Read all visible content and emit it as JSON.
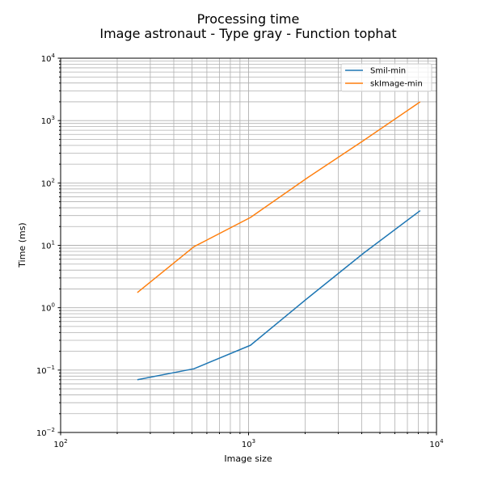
{
  "chart_data": {
    "type": "line",
    "title": "Processing time",
    "subtitle": "Image astronaut - Type gray - Function tophat",
    "xlabel": "Image size",
    "ylabel": "Time (ms)",
    "xscale": "log",
    "yscale": "log",
    "xlim": [
      100,
      10000
    ],
    "ylim": [
      0.01,
      10000
    ],
    "x_ticks": [
      {
        "value": 100,
        "base": "10",
        "exp": "2"
      },
      {
        "value": 1000,
        "base": "10",
        "exp": "3"
      },
      {
        "value": 10000,
        "base": "10",
        "exp": "4"
      }
    ],
    "y_ticks": [
      {
        "value": 0.01,
        "base": "10",
        "exp": "−2"
      },
      {
        "value": 0.1,
        "base": "10",
        "exp": "−1"
      },
      {
        "value": 1,
        "base": "10",
        "exp": "0"
      },
      {
        "value": 10,
        "base": "10",
        "exp": "1"
      },
      {
        "value": 100,
        "base": "10",
        "exp": "2"
      },
      {
        "value": 1000,
        "base": "10",
        "exp": "3"
      },
      {
        "value": 10000,
        "base": "10",
        "exp": "4"
      }
    ],
    "grid": "major and minor",
    "legend_position": "top-right",
    "series": [
      {
        "name": "Smil-min",
        "color": "#1f77b4",
        "x": [
          256,
          512,
          1024,
          2048,
          4096,
          8192
        ],
        "y": [
          0.07,
          0.105,
          0.25,
          1.4,
          7.5,
          36
        ]
      },
      {
        "name": "skImage-min",
        "color": "#ff7f0e",
        "x": [
          256,
          512,
          1024,
          2048,
          4096,
          8192
        ],
        "y": [
          1.75,
          9.5,
          28,
          120,
          480,
          2000
        ]
      }
    ]
  }
}
